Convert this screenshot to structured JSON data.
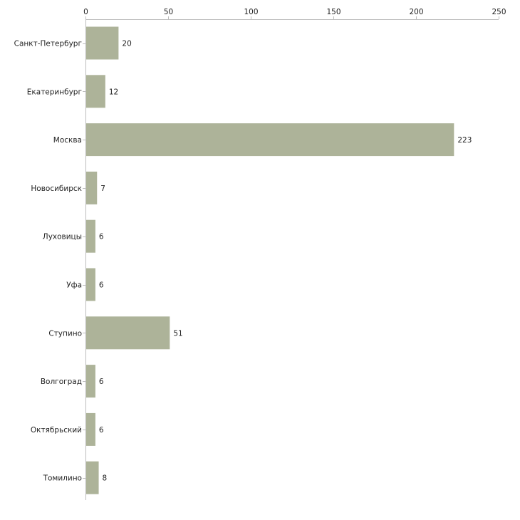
{
  "chart_data": {
    "type": "bar",
    "orientation": "horizontal",
    "title": "",
    "xlabel": "",
    "ylabel": "",
    "xlim": [
      0,
      250
    ],
    "x_ticks": [
      0,
      50,
      100,
      150,
      200,
      250
    ],
    "x_axis_position": "top",
    "grid": false,
    "legend": "none",
    "bar_color": "#adb399",
    "categories": [
      "Санкт-Петербург",
      "Екатеринбург",
      "Москва",
      "Новосибирск",
      "Луховицы",
      "Уфа",
      "Ступино",
      "Волгоград",
      "Октябрьский",
      "Томилино"
    ],
    "values": [
      20,
      12,
      223,
      7,
      6,
      6,
      51,
      6,
      6,
      8
    ]
  }
}
